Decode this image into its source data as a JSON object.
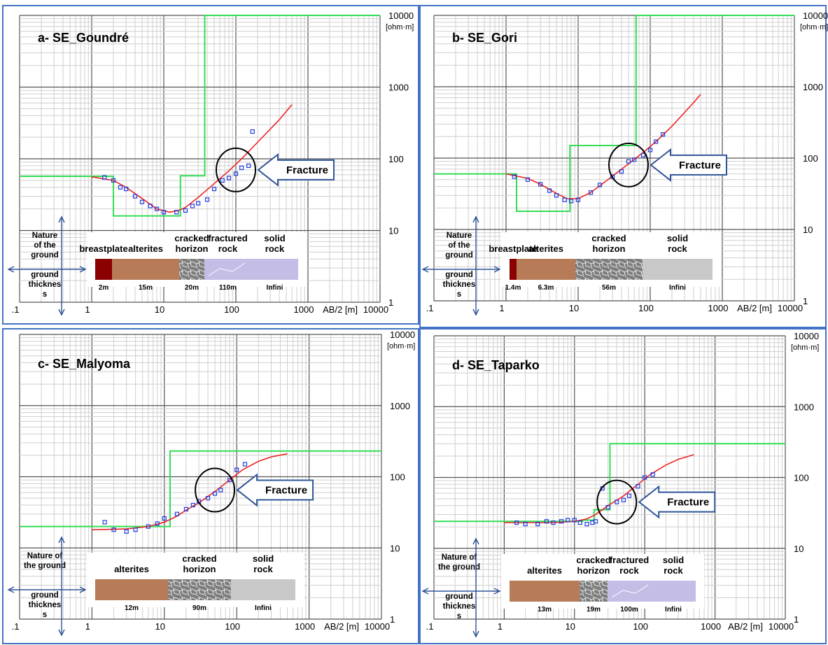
{
  "chart_data": [
    {
      "type": "scatter",
      "title": "a- SE_Goundré",
      "unit_label": "[ohm·m]",
      "xlabel": "AB/2 [m]",
      "x_scale": "log",
      "y_scale": "log",
      "xlim": [
        0.1,
        10000
      ],
      "ylim": [
        1,
        10000
      ],
      "x_ticks": [
        ".1",
        "1",
        "10",
        "100",
        "1000",
        "10000"
      ],
      "y_ticks": [
        "1",
        "10",
        "100",
        "1000",
        "10000"
      ],
      "grid": true,
      "measured": {
        "x": [
          1.5,
          2,
          2.5,
          3,
          4,
          5,
          6.5,
          8,
          10,
          15,
          20,
          25,
          30,
          40,
          50,
          65,
          80,
          100,
          120,
          150,
          170
        ],
        "y": [
          55,
          50,
          40,
          38,
          30,
          25,
          22,
          20,
          18,
          18,
          19,
          22,
          24,
          27,
          38,
          50,
          54,
          62,
          75,
          80,
          240
        ]
      },
      "model_curve": {
        "x": [
          1,
          2,
          3,
          5,
          8,
          12,
          16,
          20,
          30,
          50,
          80,
          120,
          200,
          400,
          600
        ],
        "y": [
          56,
          50,
          40,
          28,
          20,
          18,
          19,
          21,
          29,
          45,
          68,
          100,
          170,
          350,
          570
        ]
      },
      "model_layers": {
        "resistivity": [
          57,
          16,
          58,
          10000
        ],
        "boundary_depth": [
          2,
          17,
          37
        ]
      },
      "fracture_label": "Fracture",
      "fracture_at": [
        100,
        70
      ],
      "ground": {
        "nature_label": "Nature of the ground",
        "thickness_label": "ground thicknes s",
        "layers": [
          {
            "name": "breastplate",
            "thickness": "2m",
            "color": "#8b0000"
          },
          {
            "name": "alterites",
            "thickness": "15m",
            "color": "#b87b58"
          },
          {
            "name": "cracked horizon",
            "thickness": "20m",
            "color": "#888888"
          },
          {
            "name": "fractured rock",
            "thickness": "110m",
            "color": "#c4bde6"
          },
          {
            "name": "solid rock",
            "thickness": "Infini",
            "color": "#c4bde6"
          }
        ]
      }
    },
    {
      "type": "scatter",
      "title": "b- SE_Gori",
      "unit_label": "[ohm·m]",
      "xlabel": "AB/2 [m]",
      "x_scale": "log",
      "y_scale": "log",
      "xlim": [
        0.1,
        10000
      ],
      "ylim": [
        1,
        10000
      ],
      "x_ticks": [
        ".1",
        "1",
        "10",
        "100",
        "1000",
        "10000"
      ],
      "y_ticks": [
        "1",
        "10",
        "100",
        "1000",
        "10000"
      ],
      "grid": true,
      "measured": {
        "x": [
          1.3,
          2,
          3,
          4,
          5,
          6.5,
          8,
          10,
          15,
          20,
          30,
          40,
          50,
          60,
          80,
          100,
          120,
          150
        ],
        "y": [
          55,
          50,
          43,
          35,
          30,
          26,
          25,
          26,
          33,
          42,
          55,
          65,
          90,
          95,
          110,
          130,
          170,
          215
        ]
      },
      "model_curve": {
        "x": [
          1,
          2,
          3,
          5,
          7,
          10,
          15,
          20,
          30,
          50,
          80,
          120,
          200,
          400,
          500
        ],
        "y": [
          60,
          52,
          43,
          32,
          27,
          27,
          33,
          41,
          56,
          83,
          120,
          170,
          280,
          600,
          780
        ]
      },
      "model_layers": {
        "resistivity": [
          60,
          18,
          150,
          10000
        ],
        "boundary_depth": [
          1.4,
          7.7,
          63.7
        ]
      },
      "fracture_label": "Fracture",
      "fracture_at": [
        50,
        80
      ],
      "ground": {
        "nature_label": "Nature of the ground",
        "thickness_label": "ground thicknes s",
        "layers": [
          {
            "name": "breastplate",
            "thickness": "1.4m",
            "color": "#8b0000"
          },
          {
            "name": "alterites",
            "thickness": "6.3m",
            "color": "#b87b58"
          },
          {
            "name": "cracked horizon",
            "thickness": "56m",
            "color": "#888888"
          },
          {
            "name": "solid rock",
            "thickness": "Infini",
            "color": "#c8c8c8"
          }
        ]
      }
    },
    {
      "type": "scatter",
      "title": "c- SE_Malyoma",
      "unit_label": "[ohm·m]",
      "xlabel": "AB/2 [m]",
      "x_scale": "log",
      "y_scale": "log",
      "xlim": [
        0.1,
        10000
      ],
      "ylim": [
        1,
        10000
      ],
      "x_ticks": [
        ".1",
        "1",
        "10",
        "100",
        "1000",
        "10000"
      ],
      "y_ticks": [
        "1",
        "10",
        "100",
        "1000",
        "10000"
      ],
      "grid": true,
      "measured": {
        "x": [
          1.5,
          2,
          3,
          4,
          6,
          8,
          10,
          15,
          20,
          25,
          30,
          40,
          50,
          60,
          80,
          100,
          130
        ],
        "y": [
          23,
          18,
          17,
          18,
          20,
          22,
          26,
          30,
          35,
          40,
          45,
          50,
          58,
          65,
          90,
          125,
          150
        ]
      },
      "model_curve": {
        "x": [
          1,
          3,
          6,
          10,
          15,
          20,
          30,
          50,
          80,
          120,
          200,
          300,
          500
        ],
        "y": [
          18,
          18.5,
          20,
          23,
          28,
          34,
          43,
          62,
          90,
          125,
          165,
          190,
          210
        ]
      },
      "model_layers": {
        "resistivity": [
          20,
          230
        ],
        "boundary_depth": [
          12
        ]
      },
      "fracture_label": "Fracture",
      "fracture_at": [
        50,
        65
      ],
      "ground": {
        "nature_label": "Nature of the ground",
        "thickness_label": "ground thicknes s",
        "layers": [
          {
            "name": "alterites",
            "thickness": "12m",
            "color": "#b87b58"
          },
          {
            "name": "cracked horizon",
            "thickness": "90m",
            "color": "#888888"
          },
          {
            "name": "solid rock",
            "thickness": "Infini",
            "color": "#c8c8c8"
          }
        ]
      }
    },
    {
      "type": "scatter",
      "title": "d- SE_Taparko",
      "unit_label": "[ohm·m]",
      "xlabel": "AB/2 [m]",
      "x_scale": "log",
      "y_scale": "log",
      "xlim": [
        0.1,
        10000
      ],
      "ylim": [
        1,
        10000
      ],
      "x_ticks": [
        ".1",
        "1",
        "10",
        "100",
        "1000",
        "10000"
      ],
      "y_ticks": [
        "1",
        "10",
        "100",
        "1000",
        "10000"
      ],
      "grid": true,
      "measured": {
        "x": [
          1.5,
          2,
          3,
          4,
          5,
          6.5,
          8,
          10,
          12,
          15,
          18,
          20,
          25,
          30,
          40,
          50,
          60,
          80,
          100,
          130
        ],
        "y": [
          23,
          22,
          22,
          24,
          23,
          24,
          25,
          25,
          23,
          22,
          23,
          24,
          70,
          38,
          45,
          48,
          55,
          75,
          100,
          110
        ]
      },
      "model_curve": {
        "x": [
          1,
          5,
          10,
          15,
          20,
          30,
          50,
          80,
          120,
          200,
          300,
          500
        ],
        "y": [
          23,
          23,
          24,
          26,
          30,
          40,
          55,
          80,
          110,
          150,
          180,
          210
        ]
      },
      "model_layers": {
        "resistivity": [
          24,
          25,
          35,
          300
        ],
        "boundary_depth": [
          13,
          19,
          32
        ]
      },
      "fracture_label": "Fracture",
      "fracture_at": [
        40,
        45
      ],
      "ground": {
        "nature_label": "Nature of the ground",
        "thickness_label": "ground thicknes s",
        "layers": [
          {
            "name": "alterites",
            "thickness": "13m",
            "color": "#b87b58"
          },
          {
            "name": "cracked horizon",
            "thickness": "19m",
            "color": "#888888"
          },
          {
            "name": "fractured rock",
            "thickness": "100m",
            "color": "#c4bde6"
          },
          {
            "name": "solid rock",
            "thickness": "Infini",
            "color": "#c4bde6"
          }
        ]
      }
    }
  ]
}
